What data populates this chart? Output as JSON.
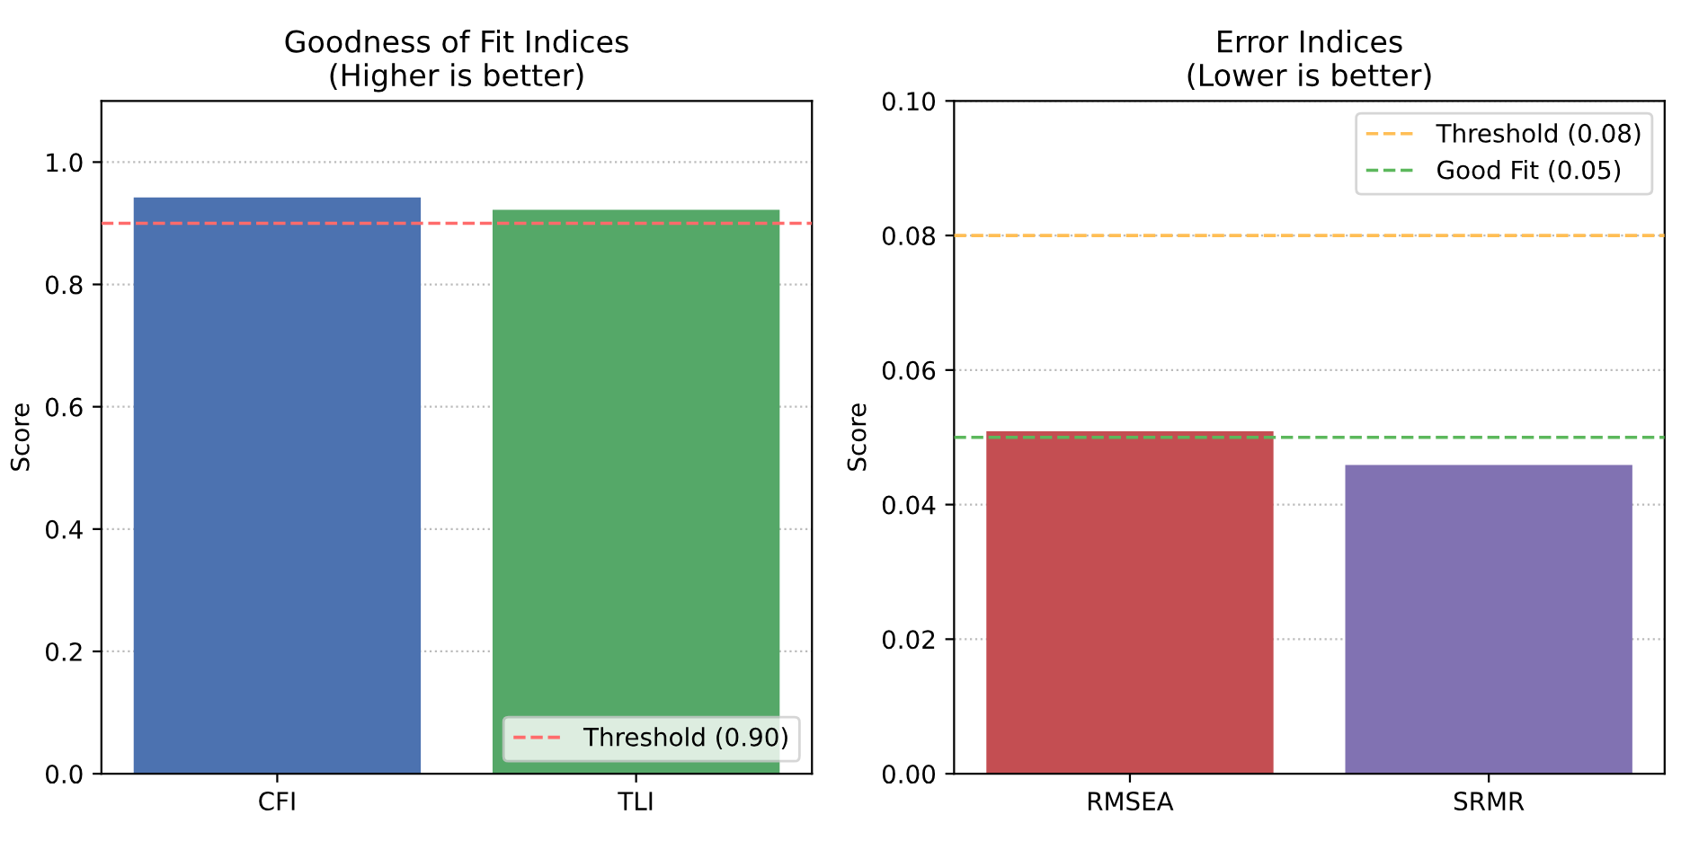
{
  "chart_data": [
    {
      "type": "bar",
      "title": "Goodness of Fit Indices\n(Higher is better)",
      "ylabel": "Score",
      "categories": [
        "CFI",
        "TLI"
      ],
      "values": [
        0.942,
        0.922
      ],
      "colors": [
        "#4c72b0",
        "#55a868"
      ],
      "ylim": [
        0,
        1.1
      ],
      "yticks": [
        {
          "value": 0,
          "label": "0.0"
        },
        0.2,
        0.4,
        0.6,
        0.8,
        {
          "value": 1,
          "label": "1.0"
        }
      ],
      "grid": "y",
      "legend": "lower right",
      "ref_lines": [
        {
          "axis": "y",
          "value": 0.9,
          "label": "Threshold (0.90)",
          "color": "#ff6b6b",
          "line_style": "dashed"
        }
      ]
    },
    {
      "type": "bar",
      "title": "Error Indices\n(Lower is better)",
      "ylabel": "Score",
      "categories": [
        "RMSEA",
        "SRMR"
      ],
      "values": [
        0.0509,
        0.0459
      ],
      "colors": [
        "#c44e52",
        "#8172b2"
      ],
      "ylim": [
        0,
        0.1
      ],
      "yticks": [
        {
          "value": 0,
          "label": "0.00"
        },
        {
          "value": 0.02,
          "label": "0.02"
        },
        {
          "value": 0.04,
          "label": "0.04"
        },
        {
          "value": 0.06,
          "label": "0.06"
        },
        {
          "value": 0.08,
          "label": "0.08"
        },
        {
          "value": 0.1,
          "label": "0.10"
        }
      ],
      "grid": "y",
      "legend": "upper right",
      "ref_lines": [
        {
          "axis": "y",
          "value": 0.08,
          "label": "Threshold (0.08)",
          "color": "#ffbe55",
          "line_style": "dashed"
        },
        {
          "axis": "y",
          "value": 0.05,
          "label": "Good Fit (0.05)",
          "color": "#5cb85c",
          "line_style": "dashed"
        }
      ]
    }
  ]
}
